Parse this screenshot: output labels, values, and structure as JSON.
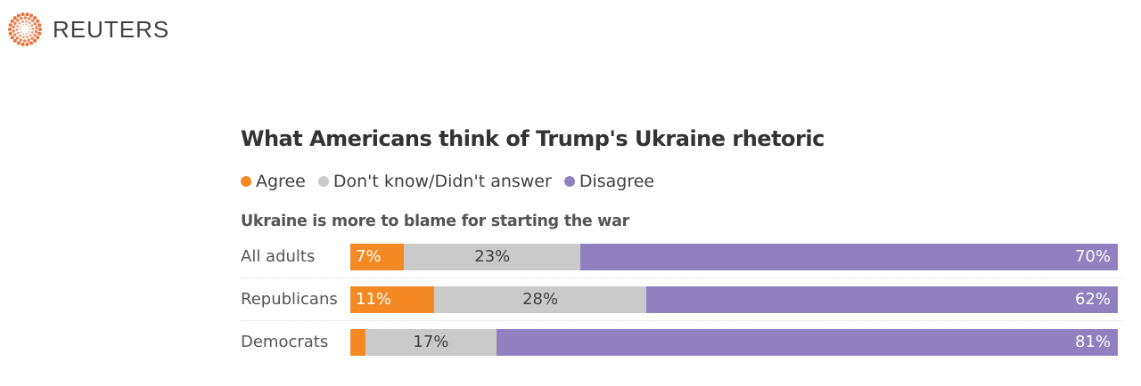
{
  "brand": {
    "name": "REUTERS",
    "logo_icon": "reuters-dot-ring-logo",
    "logo_color": "#e8703a"
  },
  "chart_data": {
    "type": "bar",
    "orientation": "horizontal-stacked-100",
    "title": "What Americans think of Trump's Ukraine rhetoric",
    "subtitle": "Ukraine is more to blame for starting the war",
    "legend": [
      {
        "key": "agree",
        "label": "Agree",
        "color": "#f58a25"
      },
      {
        "key": "dk",
        "label": "Don't know/Didn't answer",
        "color": "#cacaca"
      },
      {
        "key": "dis",
        "label": "Disagree",
        "color": "#9080c0"
      }
    ],
    "legend_position": "top-left",
    "categories": [
      "All adults",
      "Republicans",
      "Democrats"
    ],
    "series": [
      {
        "name": "Agree",
        "key": "agree",
        "values": [
          7,
          11,
          2
        ],
        "labels": [
          "7%",
          "11%",
          ""
        ]
      },
      {
        "name": "Don't know/Didn't answer",
        "key": "dk",
        "values": [
          23,
          28,
          17
        ],
        "labels": [
          "23%",
          "28%",
          "17%"
        ]
      },
      {
        "name": "Disagree",
        "key": "dis",
        "values": [
          70,
          62,
          81
        ],
        "labels": [
          "70%",
          "62%",
          "81%"
        ]
      }
    ],
    "unit": "%",
    "xlim": [
      0,
      100
    ],
    "grid": false
  }
}
